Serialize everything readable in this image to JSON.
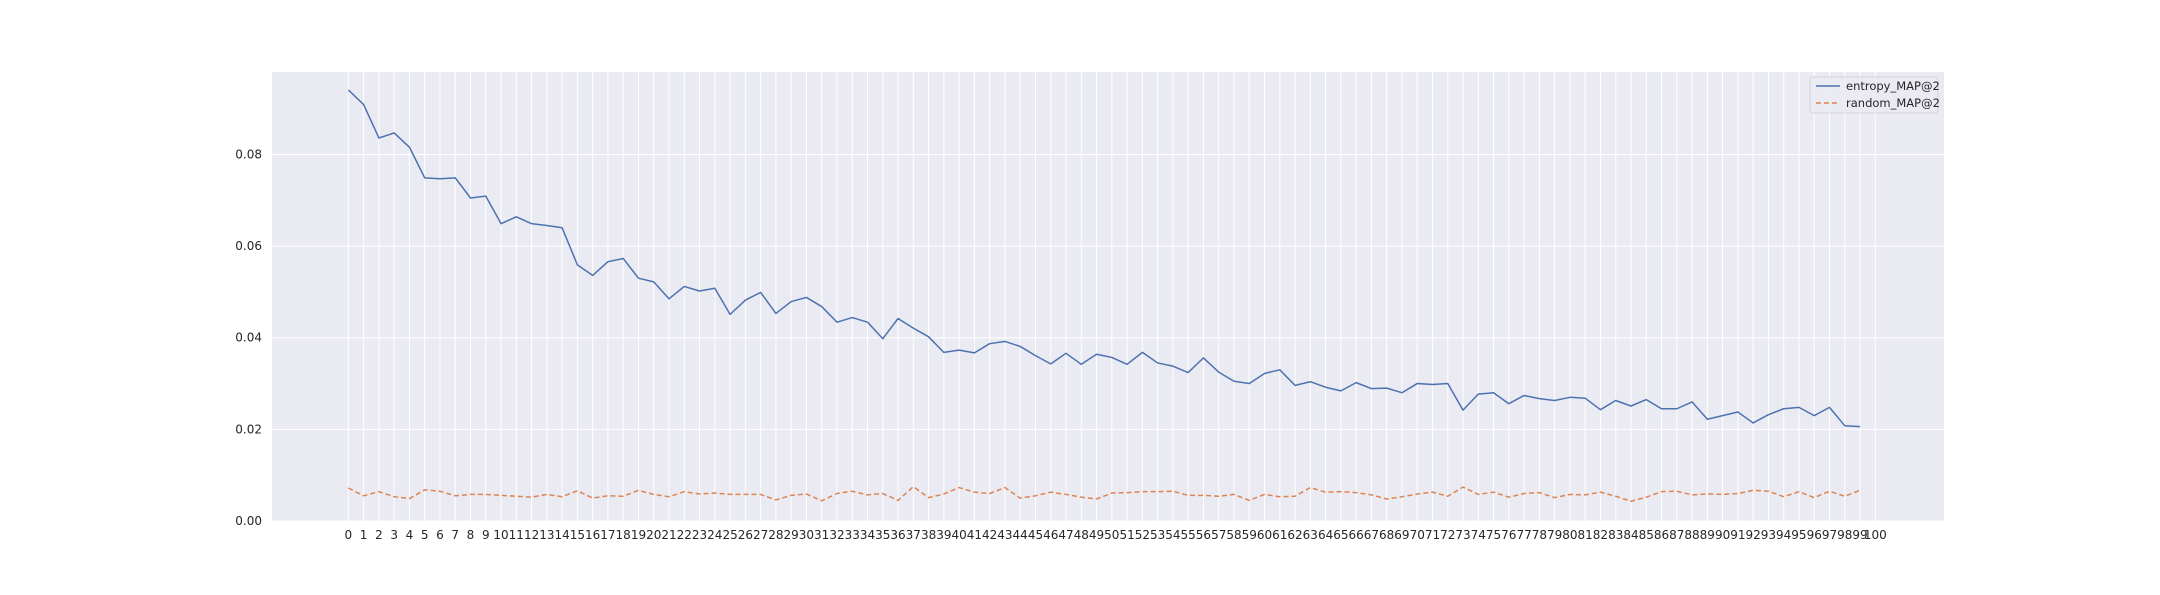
{
  "chart_data": {
    "type": "line",
    "title": "",
    "xlabel": "",
    "ylabel": "",
    "x": [
      0,
      1,
      2,
      3,
      4,
      5,
      6,
      7,
      8,
      9,
      10,
      11,
      12,
      13,
      14,
      15,
      16,
      17,
      18,
      19,
      20,
      21,
      22,
      23,
      24,
      25,
      26,
      27,
      28,
      29,
      30,
      31,
      32,
      33,
      34,
      35,
      36,
      37,
      38,
      39,
      40,
      41,
      42,
      43,
      44,
      45,
      46,
      47,
      48,
      49,
      50,
      51,
      52,
      53,
      54,
      55,
      56,
      57,
      58,
      59,
      60,
      61,
      62,
      63,
      64,
      65,
      66,
      67,
      68,
      69,
      70,
      71,
      72,
      73,
      74,
      75,
      76,
      77,
      78,
      79,
      80,
      81,
      82,
      83,
      84,
      85,
      86,
      87,
      88,
      89,
      90,
      91,
      92,
      93,
      94,
      95,
      96,
      97,
      98,
      99
    ],
    "xticks": [
      0,
      1,
      2,
      3,
      4,
      5,
      6,
      7,
      8,
      9,
      10,
      11,
      12,
      13,
      14,
      15,
      16,
      17,
      18,
      19,
      20,
      21,
      22,
      23,
      24,
      25,
      26,
      27,
      28,
      29,
      30,
      31,
      32,
      33,
      34,
      35,
      36,
      37,
      38,
      39,
      40,
      41,
      42,
      43,
      44,
      45,
      46,
      47,
      48,
      49,
      50,
      51,
      52,
      53,
      54,
      55,
      56,
      57,
      58,
      59,
      60,
      61,
      62,
      63,
      64,
      65,
      66,
      67,
      68,
      69,
      70,
      71,
      72,
      73,
      74,
      75,
      76,
      77,
      78,
      79,
      80,
      81,
      82,
      83,
      84,
      85,
      86,
      87,
      88,
      89,
      90,
      91,
      92,
      93,
      94,
      95,
      96,
      97,
      98,
      99,
      100
    ],
    "xlim": [
      -5,
      104.5
    ],
    "ylim": [
      0,
      0.098
    ],
    "yticks": [
      0.0,
      0.02,
      0.04,
      0.06,
      0.08
    ],
    "ytick_labels": [
      "0.00",
      "0.02",
      "0.04",
      "0.06",
      "0.08"
    ],
    "grid": true,
    "legend_position": "upper right",
    "series": [
      {
        "name": "entropy_MAP@2",
        "color": "#4c72b0",
        "style": "solid",
        "values": [
          0.0941,
          0.0909,
          0.0836,
          0.0847,
          0.0816,
          0.0749,
          0.0747,
          0.0749,
          0.0705,
          0.0709,
          0.0649,
          0.0664,
          0.0649,
          0.0645,
          0.064,
          0.0559,
          0.0536,
          0.0566,
          0.0573,
          0.053,
          0.0522,
          0.0485,
          0.0512,
          0.0502,
          0.0508,
          0.0451,
          0.0482,
          0.0499,
          0.0453,
          0.0479,
          0.0488,
          0.0468,
          0.0434,
          0.0444,
          0.0434,
          0.0398,
          0.0442,
          0.0421,
          0.0402,
          0.0368,
          0.0373,
          0.0367,
          0.0387,
          0.0392,
          0.0381,
          0.0361,
          0.0343,
          0.0366,
          0.0342,
          0.0364,
          0.0357,
          0.0342,
          0.0368,
          0.0345,
          0.0338,
          0.0324,
          0.0356,
          0.0325,
          0.0305,
          0.03,
          0.0322,
          0.033,
          0.0296,
          0.0304,
          0.0292,
          0.0284,
          0.0302,
          0.0289,
          0.029,
          0.028,
          0.03,
          0.0298,
          0.03,
          0.0242,
          0.0277,
          0.028,
          0.0256,
          0.0274,
          0.0267,
          0.0263,
          0.027,
          0.0268,
          0.0243,
          0.0263,
          0.0251,
          0.0265,
          0.0245,
          0.0245,
          0.026,
          0.0222,
          0.023,
          0.0238,
          0.0214,
          0.0232,
          0.0245,
          0.0248,
          0.023,
          0.0248,
          0.0208,
          0.0206
        ]
      },
      {
        "name": "random_MAP@2",
        "color": "#dd8452",
        "style": "dashed",
        "values": [
          0.0072,
          0.0055,
          0.0064,
          0.0053,
          0.0049,
          0.0068,
          0.0065,
          0.0055,
          0.0058,
          0.0058,
          0.0056,
          0.0054,
          0.0052,
          0.0058,
          0.0053,
          0.0066,
          0.005,
          0.0055,
          0.0054,
          0.0067,
          0.0058,
          0.0053,
          0.0064,
          0.0059,
          0.0061,
          0.0058,
          0.0058,
          0.0058,
          0.0046,
          0.0056,
          0.0059,
          0.0044,
          0.006,
          0.0065,
          0.0057,
          0.006,
          0.0045,
          0.0075,
          0.0051,
          0.0059,
          0.0073,
          0.0063,
          0.006,
          0.0073,
          0.005,
          0.0055,
          0.0063,
          0.0058,
          0.0052,
          0.0048,
          0.0061,
          0.0062,
          0.0064,
          0.0064,
          0.0065,
          0.0056,
          0.0056,
          0.0054,
          0.0058,
          0.0045,
          0.0058,
          0.0053,
          0.0054,
          0.0073,
          0.0063,
          0.0064,
          0.0062,
          0.0057,
          0.0048,
          0.0053,
          0.0059,
          0.0063,
          0.0054,
          0.0074,
          0.0058,
          0.0063,
          0.0052,
          0.006,
          0.0062,
          0.0051,
          0.0058,
          0.0057,
          0.0063,
          0.0054,
          0.0043,
          0.0052,
          0.0064,
          0.0065,
          0.0057,
          0.0059,
          0.0058,
          0.006,
          0.0067,
          0.0065,
          0.0053,
          0.0064,
          0.0051,
          0.0065,
          0.0054,
          0.0067
        ]
      }
    ]
  }
}
